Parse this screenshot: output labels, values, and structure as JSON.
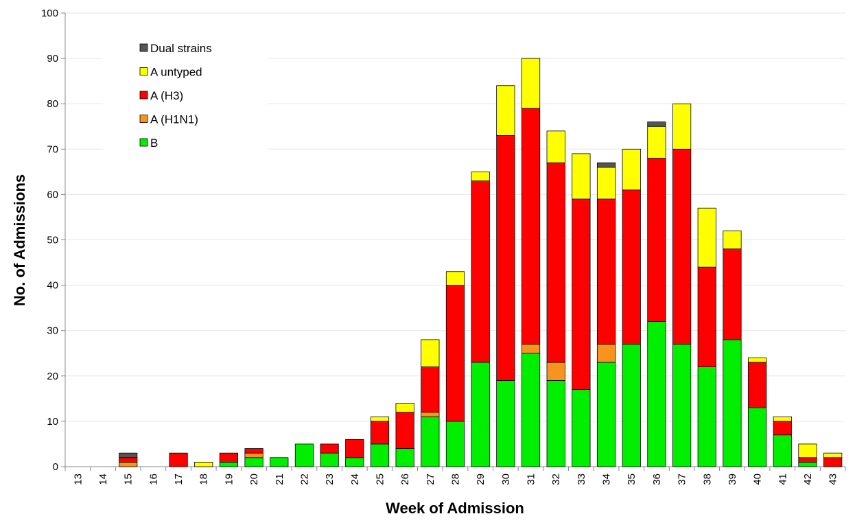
{
  "chart_data": {
    "type": "stacked-bar",
    "x_label": "Week of Admission",
    "y_label": "No. of Admissions",
    "categories": [
      "13",
      "14",
      "15",
      "16",
      "17",
      "18",
      "19",
      "20",
      "21",
      "22",
      "23",
      "24",
      "25",
      "26",
      "27",
      "28",
      "29",
      "30",
      "31",
      "32",
      "33",
      "34",
      "35",
      "36",
      "37",
      "38",
      "39",
      "40",
      "41",
      "42",
      "43"
    ],
    "series": [
      {
        "name": "B",
        "color": "#00ee00",
        "values": [
          0,
          0,
          0,
          0,
          0,
          0,
          1,
          2,
          2,
          5,
          3,
          2,
          5,
          4,
          11,
          10,
          23,
          19,
          25,
          19,
          17,
          23,
          27,
          32,
          27,
          22,
          28,
          13,
          7,
          1,
          0
        ]
      },
      {
        "name": "A (H1N1)",
        "color": "#f7931e",
        "values": [
          0,
          0,
          1,
          0,
          0,
          0,
          0,
          1,
          0,
          0,
          0,
          0,
          0,
          0,
          1,
          0,
          0,
          0,
          2,
          4,
          0,
          4,
          0,
          0,
          0,
          0,
          0,
          0,
          0,
          0,
          0
        ]
      },
      {
        "name": "A (H3)",
        "color": "#ff0000",
        "values": [
          0,
          0,
          1,
          0,
          3,
          0,
          2,
          1,
          0,
          0,
          2,
          4,
          5,
          8,
          10,
          30,
          40,
          54,
          52,
          44,
          42,
          32,
          34,
          36,
          43,
          22,
          20,
          10,
          3,
          1,
          2
        ]
      },
      {
        "name": "A untyped",
        "color": "#ffff00",
        "values": [
          0,
          0,
          0,
          0,
          0,
          1,
          0,
          0,
          0,
          0,
          0,
          0,
          1,
          2,
          6,
          3,
          2,
          11,
          11,
          7,
          10,
          7,
          9,
          7,
          10,
          13,
          4,
          1,
          1,
          3,
          1
        ]
      },
      {
        "name": "Dual strains",
        "color": "#555555",
        "values": [
          0,
          0,
          1,
          0,
          0,
          0,
          0,
          0,
          0,
          0,
          0,
          0,
          0,
          0,
          0,
          0,
          0,
          0,
          0,
          0,
          0,
          1,
          0,
          1,
          0,
          0,
          0,
          0,
          0,
          0,
          0
        ]
      }
    ],
    "ylim": [
      0,
      100
    ],
    "yticks": [
      0,
      10,
      20,
      30,
      40,
      50,
      60,
      70,
      80,
      90,
      100
    ],
    "grid": true,
    "legend": "top-left"
  }
}
